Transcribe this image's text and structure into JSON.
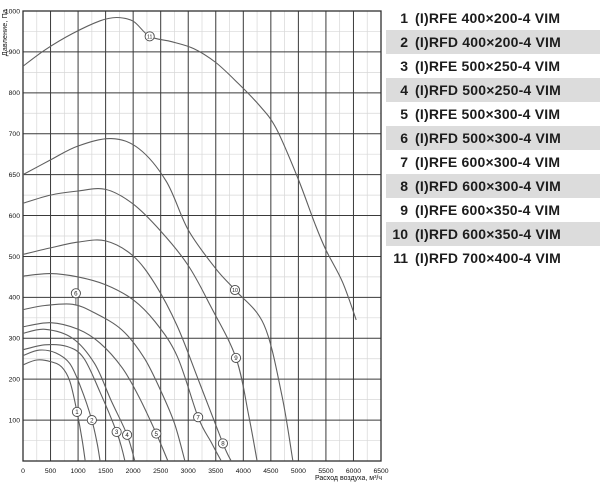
{
  "chart_data": {
    "type": "line",
    "title": "",
    "xlabel": "Расход воздуха, м³/ч",
    "ylabel": "Давление, Па",
    "x_ticks": [
      0,
      500,
      1000,
      1500,
      2000,
      2500,
      3000,
      3500,
      4000,
      4500,
      5000,
      5500,
      6000,
      6500
    ],
    "x_minor_step": 250,
    "y_ticks_top_to_bottom": [
      1000,
      900,
      800,
      700,
      650,
      600,
      500,
      400,
      300,
      200,
      100,
      0
    ],
    "y_axis_note": "non-linear axis: each labelled gridline is equally spaced, incl. the 50-Pa steps 600-650-700",
    "grid": true,
    "legend_position": "right",
    "series": [
      {
        "curve_number": 1,
        "name": "(I)RFE 400×200-4 VIM",
        "shaded": false,
        "points": [
          [
            0,
            235
          ],
          [
            250,
            247
          ],
          [
            500,
            243
          ],
          [
            700,
            230
          ],
          [
            850,
            195
          ],
          [
            980,
            120
          ],
          [
            1070,
            55
          ],
          [
            1130,
            0
          ]
        ],
        "label_at": [
          980,
          120
        ]
      },
      {
        "curve_number": 2,
        "name": "(I)RFD 400×200-4 VIM",
        "shaded": true,
        "points": [
          [
            0,
            258
          ],
          [
            300,
            271
          ],
          [
            600,
            264
          ],
          [
            850,
            238
          ],
          [
            1050,
            180
          ],
          [
            1250,
            100
          ],
          [
            1350,
            40
          ],
          [
            1400,
            0
          ]
        ],
        "label_at": [
          1250,
          100
        ]
      },
      {
        "curve_number": 3,
        "name": "(I)RFE 500×250-4 VIM",
        "shaded": false,
        "points": [
          [
            0,
            272
          ],
          [
            400,
            284
          ],
          [
            800,
            280
          ],
          [
            1100,
            252
          ],
          [
            1400,
            168
          ],
          [
            1700,
            71
          ],
          [
            1800,
            28
          ],
          [
            1850,
            0
          ]
        ],
        "label_at": [
          1700,
          71
        ]
      },
      {
        "curve_number": 4,
        "name": "(I)RFD 500×250-4 VIM",
        "shaded": true,
        "points": [
          [
            0,
            312
          ],
          [
            400,
            322
          ],
          [
            900,
            300
          ],
          [
            1300,
            238
          ],
          [
            1600,
            148
          ],
          [
            1890,
            64
          ],
          [
            2030,
            0
          ]
        ],
        "label_at": [
          1890,
          64
        ]
      },
      {
        "curve_number": 5,
        "name": "(I)RFE 500×300-4 VIM",
        "shaded": false,
        "points": [
          [
            0,
            328
          ],
          [
            500,
            338
          ],
          [
            1000,
            322
          ],
          [
            1400,
            288
          ],
          [
            1800,
            228
          ],
          [
            2100,
            158
          ],
          [
            2420,
            67
          ],
          [
            2630,
            0
          ]
        ],
        "label_at": [
          2420,
          67
        ]
      },
      {
        "curve_number": 6,
        "name": "(I)RFD 500×300-4 VIM",
        "shaded": true,
        "points": [
          [
            0,
            370
          ],
          [
            400,
            380
          ],
          [
            900,
            383
          ],
          [
            1300,
            362
          ],
          [
            1800,
            320
          ],
          [
            2200,
            252
          ],
          [
            2500,
            172
          ],
          [
            2750,
            92
          ],
          [
            2940,
            0
          ]
        ],
        "label_at": [
          960,
          410
        ],
        "label_leader_to": [
          960,
          381
        ]
      },
      {
        "curve_number": 7,
        "name": "(I)RFE 600×300-4 VIM",
        "shaded": false,
        "points": [
          [
            0,
            452
          ],
          [
            500,
            458
          ],
          [
            1000,
            450
          ],
          [
            1500,
            431
          ],
          [
            2000,
            394
          ],
          [
            2400,
            340
          ],
          [
            2800,
            256
          ],
          [
            3180,
            107
          ],
          [
            3420,
            45
          ],
          [
            3600,
            0
          ]
        ],
        "label_at": [
          3180,
          107
        ]
      },
      {
        "curve_number": 8,
        "name": "(I)RFD 600×300-4 VIM",
        "shaded": true,
        "points": [
          [
            0,
            505
          ],
          [
            500,
            521
          ],
          [
            1000,
            535
          ],
          [
            1500,
            538
          ],
          [
            2000,
            501
          ],
          [
            2400,
            432
          ],
          [
            2800,
            330
          ],
          [
            3200,
            193
          ],
          [
            3630,
            43
          ],
          [
            3780,
            0
          ]
        ],
        "label_at": [
          3630,
          43
        ]
      },
      {
        "curve_number": 9,
        "name": "(I)RFE 600×350-4 VIM",
        "shaded": false,
        "points": [
          [
            0,
            615
          ],
          [
            500,
            625
          ],
          [
            1000,
            630
          ],
          [
            1500,
            632
          ],
          [
            2000,
            614
          ],
          [
            2500,
            562
          ],
          [
            3000,
            478
          ],
          [
            3400,
            380
          ],
          [
            3867,
            252
          ],
          [
            4100,
            110
          ],
          [
            4250,
            0
          ]
        ],
        "label_at": [
          3867,
          252
        ]
      },
      {
        "curve_number": 10,
        "name": "(I)RFD 600×350-4 VIM",
        "shaded": true,
        "points": [
          [
            0,
            650
          ],
          [
            500,
            668
          ],
          [
            1000,
            685
          ],
          [
            1600,
            694
          ],
          [
            2100,
            682
          ],
          [
            2600,
            642
          ],
          [
            3000,
            565
          ],
          [
            3500,
            470
          ],
          [
            3849,
            418
          ],
          [
            4376,
            333
          ],
          [
            4700,
            160
          ],
          [
            4900,
            0
          ]
        ],
        "label_at": [
          3849,
          418
        ]
      },
      {
        "curve_number": 11,
        "name": "(I)RFD 700×400-4 VIM",
        "shaded": false,
        "points": [
          [
            0,
            865
          ],
          [
            400,
            905
          ],
          [
            900,
            945
          ],
          [
            1400,
            976
          ],
          [
            1700,
            984
          ],
          [
            2000,
            975
          ],
          [
            2300,
            938
          ],
          [
            2700,
            925
          ],
          [
            3100,
            908
          ],
          [
            3500,
            874
          ],
          [
            3900,
            824
          ],
          [
            4300,
            768
          ],
          [
            4600,
            712
          ],
          [
            5000,
            644
          ],
          [
            5300,
            580
          ],
          [
            5500,
            516
          ],
          [
            5800,
            438
          ],
          [
            6050,
            345
          ]
        ],
        "label_at": [
          2300,
          938
        ]
      }
    ]
  },
  "colors": {
    "curve": "#5f5f5f",
    "grid_major": "#3a3a3a",
    "grid_minor": "#d7d7d7",
    "border": "#2f2f2f",
    "tick_text": "#111111",
    "legend_shade": "#dcdcdc",
    "legend_text": "#1c1c1c",
    "label_circle_fill": "#ffffff",
    "label_circle_stroke": "#4a4a4a"
  }
}
